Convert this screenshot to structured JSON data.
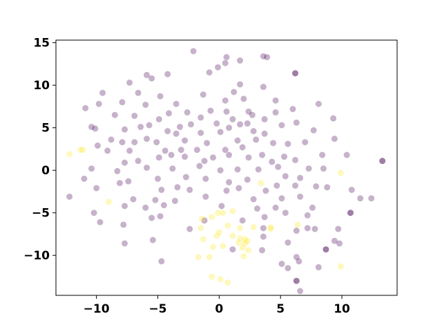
{
  "chart_data": {
    "type": "scatter",
    "xlim": [
      -13.3,
      14.5
    ],
    "ylim": [
      -14.7,
      15.3
    ],
    "xticks": [
      {
        "value": -10,
        "label": "−10"
      },
      {
        "value": -5,
        "label": "−5"
      },
      0,
      5,
      10
    ],
    "yticks": [
      {
        "value": -10,
        "label": "−10"
      },
      {
        "value": -5,
        "label": "−5"
      },
      0,
      5,
      10,
      15
    ],
    "opacity": 0.3,
    "series": [
      {
        "color": "#440154",
        "x": [
          -2.1,
          0.6,
          0.5,
          -0.1,
          1.7,
          3.6,
          3.9,
          -0.8,
          -5.9,
          -4.2,
          -5.5,
          -7.3,
          1.7,
          3.6,
          -9.5,
          -6.6,
          -4.8,
          1.2,
          -1.3,
          4.6,
          8.1,
          -7.9,
          -9.8,
          -10.9,
          -6.0,
          -3.5,
          0.5,
          2.0,
          -0.7,
          -2.6,
          -4.1,
          0.6,
          2.4,
          6.0,
          -8.5,
          -6.9,
          -4.9,
          -1.5,
          1.1,
          2.7,
          4.6,
          6.3,
          9.3,
          7.7,
          -10.4,
          -10.1,
          -7.7,
          -6.4,
          -5.7,
          -3.2,
          -2.3,
          -0.2,
          1.7,
          2.3,
          3.7,
          5.1,
          -8.8,
          -6.9,
          -5.9,
          -4.2,
          -3.5,
          -1.5,
          0.1,
          0.8,
          2.8,
          3.7,
          7.0,
          9.4,
          -9.9,
          -7.9,
          -5.1,
          -2.8,
          -1.0,
          1.5,
          3.0,
          4.4,
          5.6,
          8.4,
          -7.3,
          -9.1,
          -4.4,
          -3.1,
          -1.8,
          0.5,
          1.9,
          3.5,
          5.3,
          10.4,
          -10.4,
          -7.7,
          -6.6,
          -4.9,
          -3.9,
          -2.8,
          -1.2,
          -0.5,
          0.8,
          2.4,
          4.3,
          6.2,
          13.3,
          13.3,
          -11.0,
          -8.3,
          -5.9,
          -3.8,
          -1.6,
          0.1,
          1.5,
          3.2,
          4.8,
          7.3,
          8.5,
          -8.1,
          -7.4,
          -5.0,
          -2.7,
          -1.1,
          0.8,
          2.3,
          4.7,
          5.4,
          6.6,
          7.9,
          10.8,
          -10.0,
          -4.7,
          -3.4,
          -2.4,
          0.6,
          1.6,
          3.8,
          6.2,
          8.8,
          -12.2,
          -7.0,
          -5.2,
          -3.6,
          -1.1,
          2.8,
          5.1,
          6.6,
          11.5,
          12.4,
          -7.7,
          -6.0,
          -4.5,
          0.2,
          3.1,
          4.6,
          7.6,
          -10.2,
          -5.5,
          -4.8,
          -1.2,
          1.9,
          3.7,
          5.4,
          7.2,
          10.7,
          10.7,
          -9.7,
          -7.8,
          -2.4,
          3.6,
          6.3,
          7.2,
          7.8,
          9.7,
          -5.4,
          -7.7,
          3.6,
          5.6,
          9.4,
          9.8,
          8.7,
          8.7,
          3.5,
          1.1,
          6.3,
          6.5,
          -4.7,
          5.1,
          5.6,
          8.1,
          6.3,
          6.3,
          6.6,
          6.2,
          6.2
        ],
        "values": [
          14.0,
          13.3,
          12.6,
          12.1,
          12.9,
          13.4,
          13.3,
          11.5,
          11.2,
          11.3,
          10.8,
          10.3,
          10.1,
          9.8,
          9.1,
          9.1,
          8.7,
          9.2,
          8.9,
          8.2,
          7.8,
          8.0,
          7.8,
          7.3,
          7.7,
          7.8,
          8.2,
          8.4,
          7.0,
          6.8,
          6.7,
          6.9,
          6.9,
          7.2,
          6.5,
          6.4,
          6.0,
          6.2,
          6.0,
          6.5,
          6.8,
          5.6,
          6.1,
          4.7,
          5.1,
          4.9,
          4.8,
          5.1,
          5.3,
          5.1,
          5.4,
          5.5,
          5.4,
          5.5,
          6.0,
          5.3,
          3.6,
          3.3,
          3.7,
          4.6,
          4.3,
          4.4,
          4.5,
          5.0,
          4.6,
          4.3,
          3.3,
          3.7,
          2.9,
          3.3,
          3.3,
          3.5,
          3.2,
          3.5,
          3.6,
          3.2,
          3.1,
          1.8,
          2.3,
          2.3,
          2.3,
          2.4,
          2.4,
          2.4,
          2.7,
          1.8,
          1.6,
          1.8,
          0.2,
          0.9,
          1.1,
          1.5,
          1.8,
          1.6,
          1.1,
          1.5,
          1.8,
          1.5,
          1.0,
          1.2,
          1.1,
          1.1,
          -1.0,
          -0.1,
          0.3,
          0.2,
          0.5,
          0.0,
          0.1,
          0.1,
          0.4,
          0.2,
          0.2,
          -1.5,
          -1.3,
          -1.0,
          -0.8,
          -1.0,
          -1.4,
          -1.1,
          -1.8,
          -0.7,
          -0.9,
          -1.9,
          -2.3,
          -2.1,
          -2.3,
          -2.0,
          -2.3,
          -2.4,
          -2.1,
          -2.4,
          -1.8,
          -2.0,
          -3.1,
          -3.4,
          -3.5,
          -3.6,
          -3.1,
          -3.4,
          -3.3,
          -3.1,
          -3.3,
          -3.3,
          -4.2,
          -4.4,
          -4.1,
          -4.2,
          -4.5,
          -4.4,
          -4.4,
          -5.0,
          -5.6,
          -5.4,
          -5.9,
          -5.9,
          -5.5,
          -5.0,
          -5.3,
          -5.0,
          -5.0,
          -6.1,
          -6.4,
          -6.9,
          -6.8,
          -7.1,
          -6.8,
          -6.9,
          -6.9,
          -8.2,
          -8.6,
          -7.8,
          -8.5,
          -8.3,
          -8.6,
          -9.3,
          -9.3,
          -9.4,
          -9.3,
          -10.2,
          -10.7,
          -10.7,
          -11.0,
          -11.5,
          -11.4,
          -13.0,
          -13.0,
          -14.2,
          11.4,
          11.4
        ]
      },
      {
        "color": "#fde725",
        "x": [
          -12.2,
          -11.3,
          -11.1,
          -9.0,
          3.4,
          9.9,
          1.1,
          -0.1,
          0.3,
          -1.4,
          -0.6,
          -1.5,
          0.7,
          1.7,
          2.8,
          4.2,
          0.0,
          -0.2,
          1.1,
          -1.3,
          1.7,
          2.1,
          1.6,
          2.3,
          2.1,
          -0.5,
          0.3,
          1.9,
          2.4,
          -1.7,
          -0.8,
          2.0,
          -0.6,
          0.1,
          0.7,
          9.9,
          4.2,
          6.4
        ],
        "values": [
          1.9,
          2.4,
          2.4,
          -3.7,
          -1.5,
          -0.3,
          -4.8,
          -5.0,
          -5.0,
          -5.7,
          -5.5,
          -6.8,
          -6.5,
          -6.8,
          -6.7,
          -6.9,
          -7.3,
          -7.7,
          -7.7,
          -8.1,
          -8.0,
          -8.1,
          -8.5,
          -8.3,
          -8.6,
          -9.0,
          -8.9,
          -9.1,
          -9.4,
          -10.2,
          -10.2,
          -10.1,
          -12.5,
          -12.8,
          -13.2,
          -11.3,
          -6.7,
          -6.4
        ]
      }
    ]
  }
}
